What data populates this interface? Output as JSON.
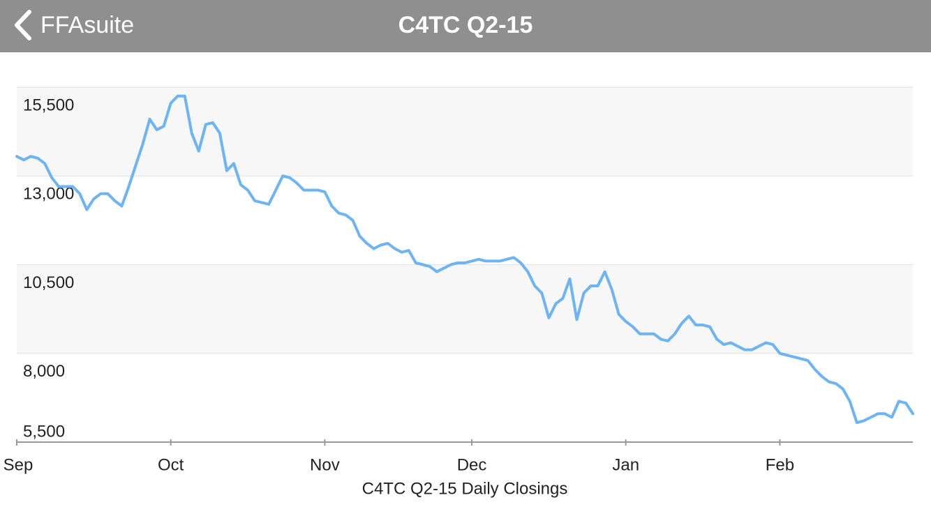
{
  "nav": {
    "back_label": "FFAsuite",
    "title": "C4TC Q2-15"
  },
  "chart_data": {
    "type": "line",
    "xlabel": "C4TC Q2-15 Daily Closings",
    "color": "#6cb4f4",
    "grid": true,
    "ylim": [
      5500,
      15500
    ],
    "yticks": [
      {
        "value": 5500,
        "label": "5,500"
      },
      {
        "value": 8000,
        "label": "8,000"
      },
      {
        "value": 10500,
        "label": "10,500"
      },
      {
        "value": 13000,
        "label": "13,000"
      },
      {
        "value": 15500,
        "label": "15,500"
      }
    ],
    "categories": [
      "Sep",
      null,
      null,
      null,
      null,
      null,
      null,
      null,
      null,
      null,
      null,
      null,
      null,
      null,
      null,
      null,
      null,
      null,
      null,
      null,
      null,
      null,
      "Oct",
      null,
      null,
      null,
      null,
      null,
      null,
      null,
      null,
      null,
      null,
      null,
      null,
      null,
      null,
      null,
      null,
      null,
      null,
      null,
      null,
      null,
      "Nov",
      null,
      null,
      null,
      null,
      null,
      null,
      null,
      null,
      null,
      null,
      null,
      null,
      null,
      null,
      null,
      null,
      null,
      null,
      null,
      null,
      "Dec",
      null,
      null,
      null,
      null,
      null,
      null,
      null,
      null,
      null,
      null,
      null,
      null,
      null,
      null,
      null,
      null,
      null,
      null,
      null,
      null,
      null,
      "Jan",
      null,
      null,
      null,
      null,
      null,
      null,
      null,
      null,
      null,
      null,
      null,
      null,
      null,
      null,
      null,
      null,
      null,
      null,
      null,
      null,
      null,
      "Feb",
      null,
      null,
      null,
      null,
      null,
      null,
      null,
      null,
      null,
      null,
      null,
      null,
      null,
      null,
      null,
      null,
      null,
      null,
      null
    ],
    "values": [
      13550,
      13450,
      13550,
      13500,
      13350,
      12950,
      12700,
      12700,
      12700,
      12500,
      12050,
      12350,
      12500,
      12500,
      12300,
      12150,
      12700,
      13300,
      13900,
      14600,
      14300,
      14400,
      15050,
      15250,
      15250,
      14200,
      13700,
      14450,
      14500,
      14200,
      13150,
      13350,
      12750,
      12600,
      12300,
      12250,
      12200,
      12600,
      13000,
      12950,
      12800,
      12600,
      12600,
      12600,
      12550,
      12150,
      11950,
      11900,
      11750,
      11300,
      11100,
      10950,
      11050,
      11100,
      10950,
      10850,
      10900,
      10550,
      10500,
      10450,
      10300,
      10400,
      10500,
      10550,
      10550,
      10600,
      10650,
      10600,
      10600,
      10600,
      10650,
      10700,
      10550,
      10300,
      9900,
      9700,
      9000,
      9400,
      9550,
      10100,
      8950,
      9700,
      9900,
      9900,
      10300,
      9800,
      9100,
      8900,
      8750,
      8550,
      8550,
      8550,
      8400,
      8350,
      8550,
      8850,
      9050,
      8800,
      8800,
      8750,
      8400,
      8250,
      8300,
      8200,
      8100,
      8100,
      8200,
      8300,
      8250,
      8000,
      7950,
      7900,
      7850,
      7800,
      7550,
      7350,
      7200,
      7150,
      7000,
      6650,
      6050,
      6100,
      6200,
      6300,
      6300,
      6200,
      6650,
      6600,
      6300
    ]
  }
}
